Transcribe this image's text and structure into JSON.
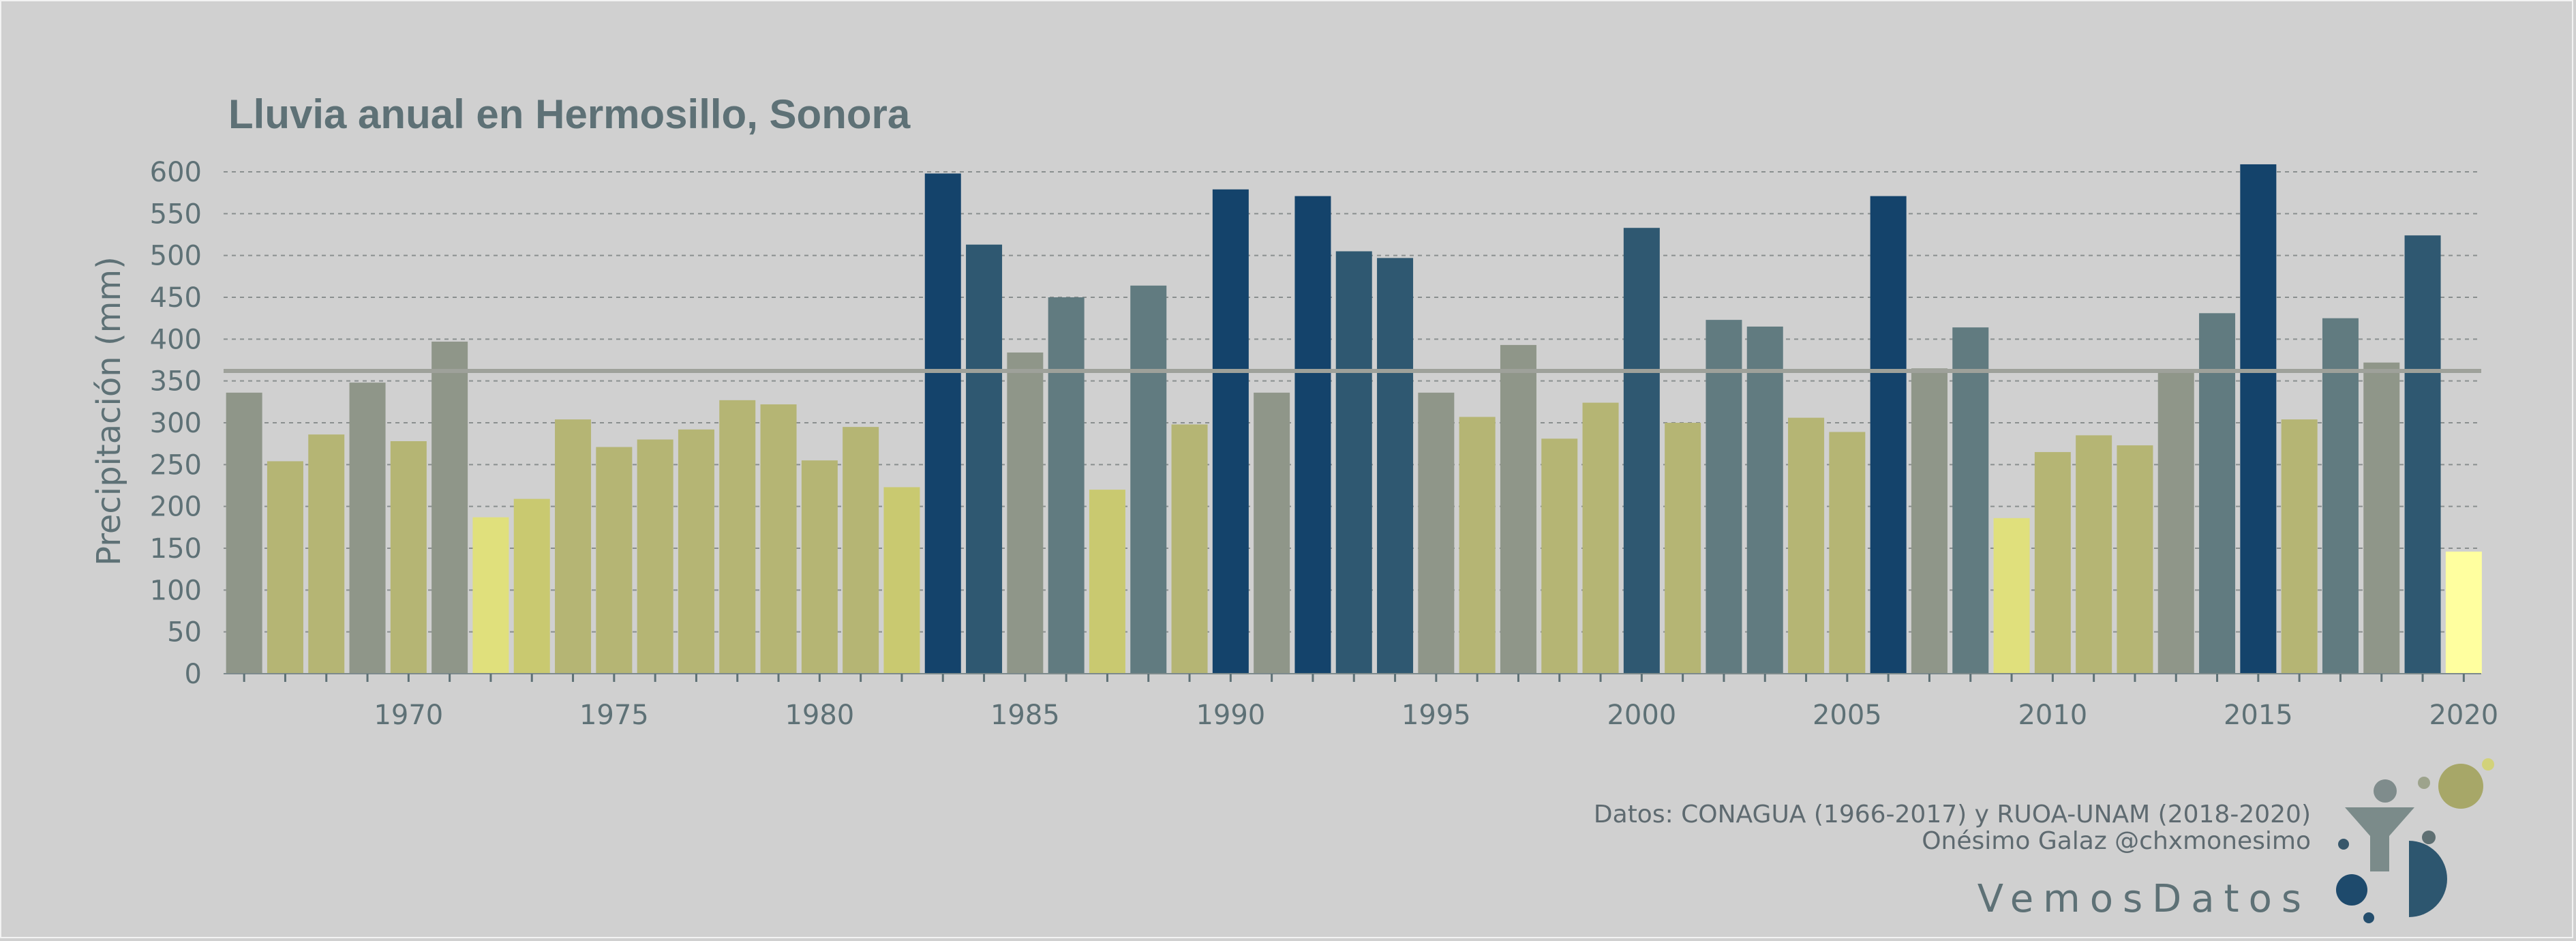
{
  "chart_data": {
    "type": "bar",
    "title": "Lluvia anual en Hermosillo, Sonora",
    "ylabel": "Precipitación (mm)",
    "xlabel": "",
    "ylim": [
      0,
      600
    ],
    "yticks": [
      0,
      50,
      100,
      150,
      200,
      250,
      300,
      350,
      400,
      450,
      500,
      550,
      600
    ],
    "xticks": [
      1970,
      1975,
      1980,
      1985,
      1990,
      1995,
      2000,
      2005,
      2010,
      2015,
      2020
    ],
    "grid": "horizontal dashed",
    "reference_line": 362,
    "x": [
      1966,
      1967,
      1968,
      1969,
      1970,
      1971,
      1972,
      1973,
      1974,
      1975,
      1976,
      1977,
      1978,
      1979,
      1980,
      1981,
      1982,
      1983,
      1984,
      1985,
      1986,
      1987,
      1988,
      1989,
      1990,
      1991,
      1992,
      1993,
      1994,
      1995,
      1996,
      1997,
      1998,
      1999,
      2000,
      2001,
      2002,
      2003,
      2004,
      2005,
      2006,
      2007,
      2008,
      2009,
      2010,
      2011,
      2012,
      2013,
      2014,
      2015,
      2016,
      2017,
      2018,
      2019,
      2020
    ],
    "values": [
      336,
      254,
      286,
      348,
      278,
      397,
      187,
      209,
      304,
      271,
      280,
      292,
      327,
      322,
      255,
      295,
      223,
      598,
      513,
      384,
      450,
      220,
      464,
      298,
      579,
      336,
      571,
      505,
      497,
      336,
      307,
      393,
      281,
      324,
      533,
      300,
      423,
      415,
      306,
      289,
      571,
      365,
      414,
      186,
      265,
      285,
      273,
      364,
      431,
      609,
      304,
      425,
      372,
      524,
      146
    ],
    "colors": {
      "high": "#14436b",
      "mid_high": "#2f5871",
      "mid": "#617b80",
      "neutral": "#8f9689",
      "low": "#b5b574",
      "very_low": "#e6e684",
      "reference_line": "#9ea19a"
    }
  },
  "credits": {
    "line1": "Datos: CONAGUA (1966-2017) y RUOA-UNAM (2018-2020)",
    "line2": "Onésimo Galaz @chxmonesimo",
    "brand": "VemosDatos"
  }
}
